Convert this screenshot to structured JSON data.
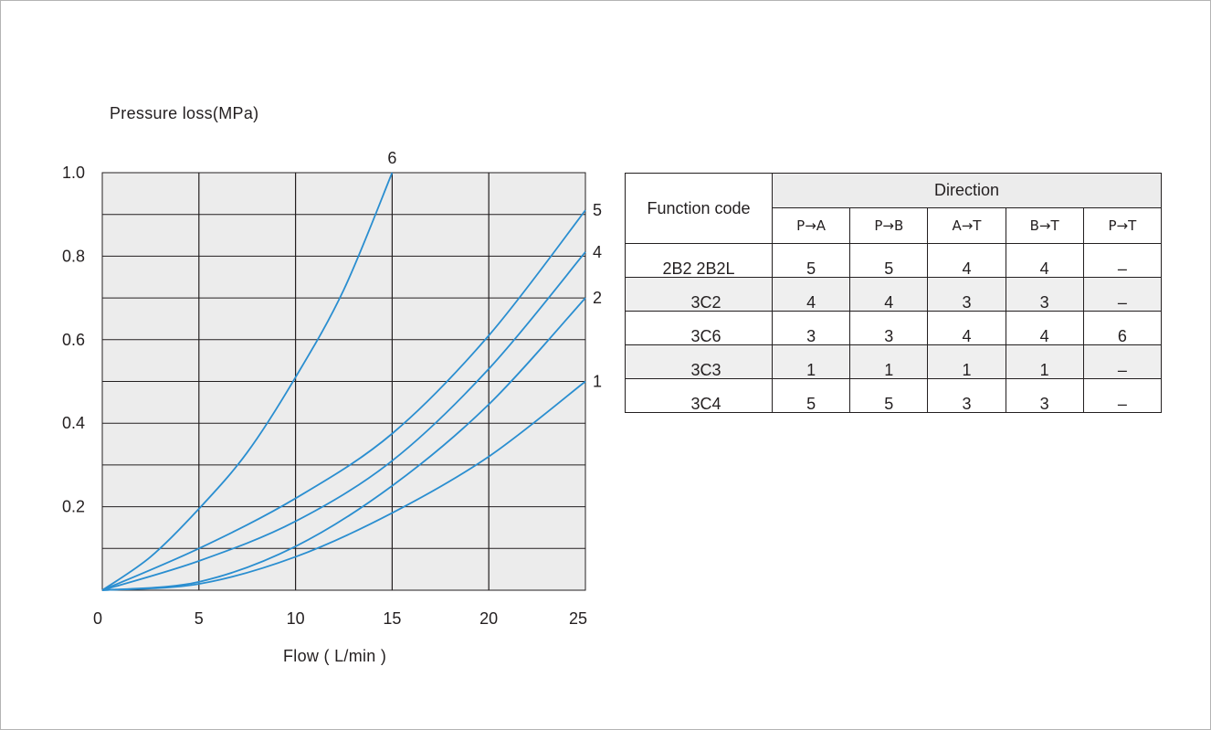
{
  "chart_data": {
    "type": "line",
    "ylabel": "Pressure loss(MPa)",
    "xlabel": "Flow ( L/min )",
    "xlim": [
      0,
      25
    ],
    "ylim": [
      0,
      1.0
    ],
    "x_ticks": [
      "0",
      "5",
      "10",
      "15",
      "20",
      "25"
    ],
    "y_ticks": [
      "0.2",
      "0.4",
      "0.6",
      "0.8",
      "1.0"
    ],
    "grid": true,
    "line_color": "#2a8ed0",
    "series": [
      {
        "name": "6",
        "x": [
          0,
          2.5,
          5,
          7.5,
          10,
          12.5,
          15
        ],
        "y": [
          0,
          0.08,
          0.195,
          0.33,
          0.51,
          0.72,
          1.0
        ]
      },
      {
        "name": "5",
        "x": [
          0,
          5,
          10,
          15,
          20,
          25
        ],
        "y": [
          0,
          0.1,
          0.22,
          0.375,
          0.61,
          0.91
        ]
      },
      {
        "name": "4",
        "x": [
          0,
          5,
          10,
          15,
          20,
          25
        ],
        "y": [
          0,
          0.07,
          0.165,
          0.31,
          0.53,
          0.81
        ]
      },
      {
        "name": "2",
        "x": [
          0,
          5,
          10,
          15,
          20,
          25
        ],
        "y": [
          0,
          0.02,
          0.105,
          0.25,
          0.445,
          0.7
        ]
      },
      {
        "name": "1",
        "x": [
          0,
          5,
          10,
          15,
          20,
          25
        ],
        "y": [
          0,
          0.015,
          0.08,
          0.185,
          0.32,
          0.5
        ]
      }
    ]
  },
  "table": {
    "header_function": "Function code",
    "header_direction": "Direction",
    "directions": [
      "P→A",
      "P→B",
      "A→T",
      "B→T",
      "P→T"
    ],
    "rows": [
      {
        "code": "2B2  2B2L",
        "values": [
          "5",
          "5",
          "4",
          "4",
          "–"
        ]
      },
      {
        "code": "3C2",
        "values": [
          "4",
          "4",
          "3",
          "3",
          "–"
        ]
      },
      {
        "code": "3C6",
        "values": [
          "3",
          "3",
          "4",
          "4",
          "6"
        ]
      },
      {
        "code": "3C3",
        "values": [
          "1",
          "1",
          "1",
          "1",
          "–"
        ]
      },
      {
        "code": "3C4",
        "values": [
          "5",
          "5",
          "3",
          "3",
          "–"
        ]
      }
    ]
  }
}
